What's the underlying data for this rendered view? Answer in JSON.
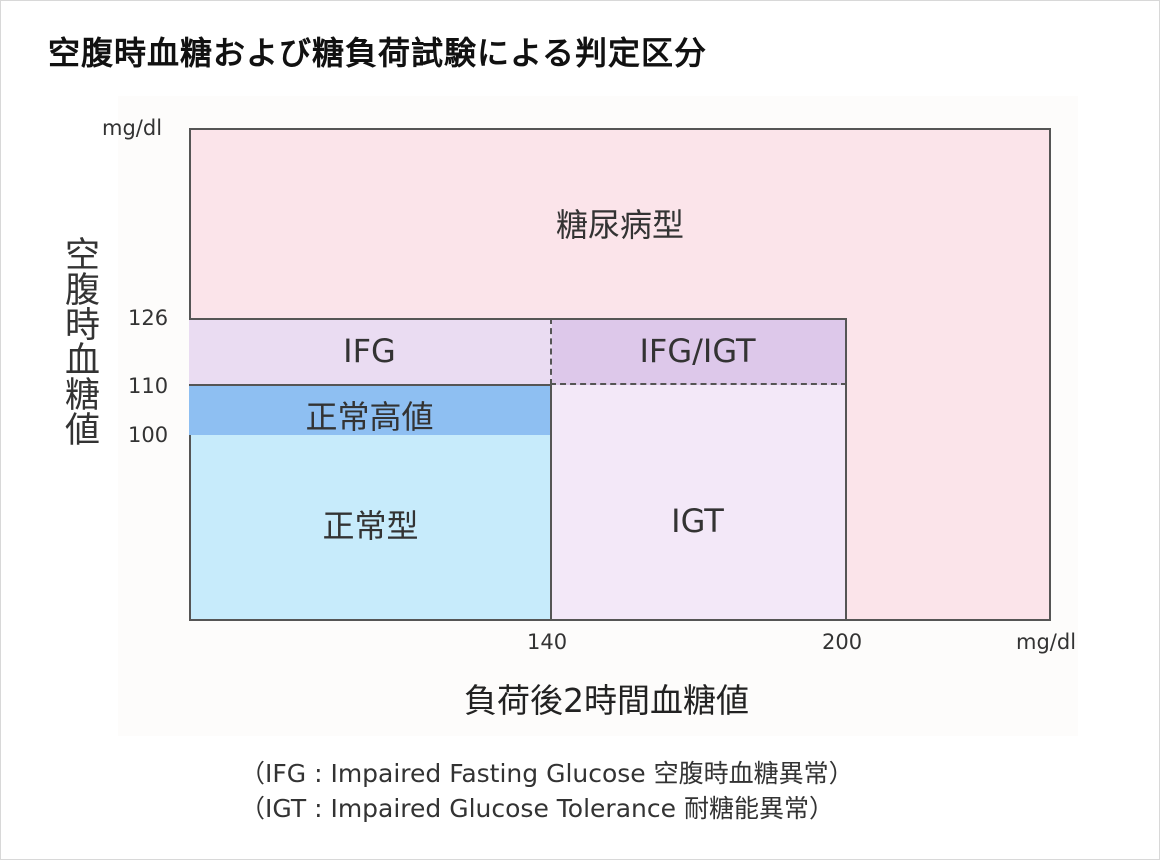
{
  "title": "空腹時血糖および糖負荷試験による判定区分",
  "chart_data": {
    "type": "region-diagram",
    "y_axis": {
      "label": "空腹時血糖値",
      "unit": "mg/dl",
      "ticks": [
        "126",
        "110",
        "100"
      ]
    },
    "x_axis": {
      "label": "負荷後2時間血糖値",
      "unit": "mg/dl",
      "ticks": [
        "140",
        "200"
      ]
    },
    "regions": [
      {
        "name": "糖尿病型",
        "color": "#fbe4ea"
      },
      {
        "name": "IFG",
        "color": "#eadcf2"
      },
      {
        "name": "IFG/IGT",
        "color": "#ddc8ea"
      },
      {
        "name": "正常高値",
        "color": "#8ebff2"
      },
      {
        "name": "正常型",
        "color": "#c7ebfb"
      },
      {
        "name": "IGT",
        "color": "#f3e8f8"
      }
    ]
  },
  "notes": [
    "（IFG : Impaired Fasting Glucose 空腹時血糖異常）",
    "（IGT : Impaired Glucose Tolerance 耐糖能異常）"
  ]
}
